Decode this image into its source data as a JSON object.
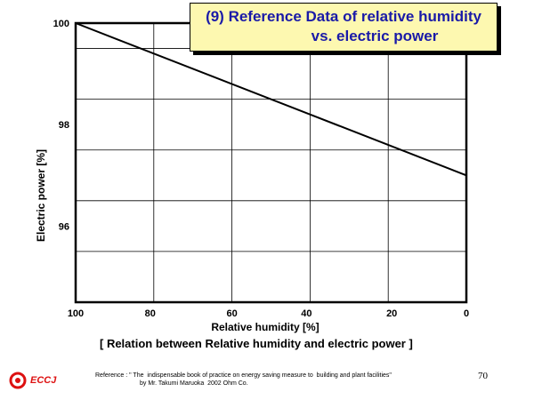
{
  "slide": {
    "title_line1": "(9) Reference Data of relative humidity",
    "title_line2": "vs. electric power",
    "caption": "[ Relation between Relative humidity and electric power ]",
    "reference_line1": "Reference : \" The  indispensable book of practice on energy saving measure to  building and plant facilities\"",
    "reference_line2": "by Mr. Takumi Maruoka  2002 Ohm Co.",
    "page_number": "70",
    "logo_text": "ECCJ",
    "colors": {
      "title_text": "#1a1aa8",
      "title_bg": "#fdf8b0",
      "logo": "#dd1111"
    }
  },
  "chart_data": {
    "type": "line",
    "xlabel": "Relative humidity [%]",
    "ylabel": "Electric power [%]",
    "x_ticks": [
      100,
      80,
      60,
      40,
      20,
      0
    ],
    "x_tick_labels": [
      "100",
      "80",
      "60",
      "40",
      "20",
      "0"
    ],
    "y_ticks": [
      96,
      98,
      100
    ],
    "y_tick_labels": [
      "96",
      "98",
      "100"
    ],
    "xlim": [
      100,
      0
    ],
    "ylim": [
      94.5,
      100
    ],
    "grid": true,
    "series": [
      {
        "x": [
          100,
          0
        ],
        "y": [
          100,
          97
        ]
      }
    ]
  }
}
